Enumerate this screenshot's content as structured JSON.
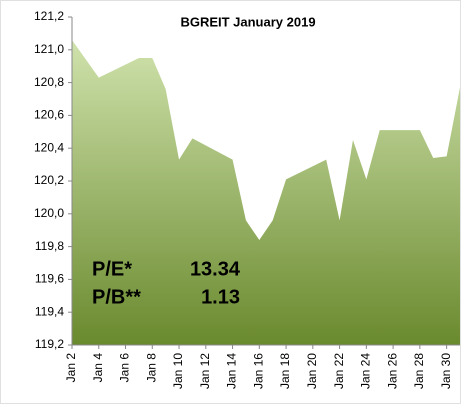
{
  "chart_data": {
    "type": "area",
    "title": "BGREIT January 2019",
    "x": [
      "2019-01-02",
      "2019-01-04",
      "2019-01-07",
      "2019-01-08",
      "2019-01-09",
      "2019-01-10",
      "2019-01-11",
      "2019-01-14",
      "2019-01-15",
      "2019-01-16",
      "2019-01-17",
      "2019-01-18",
      "2019-01-21",
      "2019-01-22",
      "2019-01-23",
      "2019-01-24",
      "2019-01-25",
      "2019-01-28",
      "2019-01-29",
      "2019-01-30",
      "2019-01-31"
    ],
    "series": [
      {
        "name": "BGREIT",
        "color": "#8aab4c",
        "values": [
          121.06,
          120.83,
          120.95,
          120.95,
          120.76,
          120.33,
          120.46,
          120.33,
          119.96,
          119.84,
          119.96,
          120.21,
          120.33,
          119.96,
          120.45,
          120.21,
          120.51,
          120.51,
          120.34,
          120.35,
          120.77
        ]
      }
    ],
    "xlim": [
      "2019-01-02",
      "2019-01-31"
    ],
    "xticks": [
      {
        "value": "2019-01-02",
        "label": "Jan 2"
      },
      {
        "value": "2019-01-04",
        "label": "Jan 4"
      },
      {
        "value": "2019-01-06",
        "label": "Jan 6"
      },
      {
        "value": "2019-01-08",
        "label": "Jan 8"
      },
      {
        "value": "2019-01-10",
        "label": "Jan 10"
      },
      {
        "value": "2019-01-12",
        "label": "Jan 12"
      },
      {
        "value": "2019-01-14",
        "label": "Jan 14"
      },
      {
        "value": "2019-01-16",
        "label": "Jan 16"
      },
      {
        "value": "2019-01-18",
        "label": "Jan 18"
      },
      {
        "value": "2019-01-20",
        "label": "Jan 20"
      },
      {
        "value": "2019-01-22",
        "label": "Jan 22"
      },
      {
        "value": "2019-01-24",
        "label": "Jan 24"
      },
      {
        "value": "2019-01-26",
        "label": "Jan 26"
      },
      {
        "value": "2019-01-28",
        "label": "Jan 28"
      },
      {
        "value": "2019-01-30",
        "label": "Jan 30"
      }
    ],
    "ylim": [
      119.2,
      121.2
    ],
    "yticks": [
      {
        "value": 119.2,
        "label": "119,2"
      },
      {
        "value": 119.4,
        "label": "119,4"
      },
      {
        "value": 119.6,
        "label": "119,6"
      },
      {
        "value": 119.8,
        "label": "119,8"
      },
      {
        "value": 120.0,
        "label": "120,0"
      },
      {
        "value": 120.2,
        "label": "120,2"
      },
      {
        "value": 120.4,
        "label": "120,4"
      },
      {
        "value": 120.6,
        "label": "120,6"
      },
      {
        "value": 120.8,
        "label": "120,8"
      },
      {
        "value": 121.0,
        "label": "121,0"
      },
      {
        "value": 121.2,
        "label": "121,2"
      }
    ],
    "annotations": [
      "P/E*",
      "13.34",
      "P/B**",
      "1.13"
    ]
  }
}
